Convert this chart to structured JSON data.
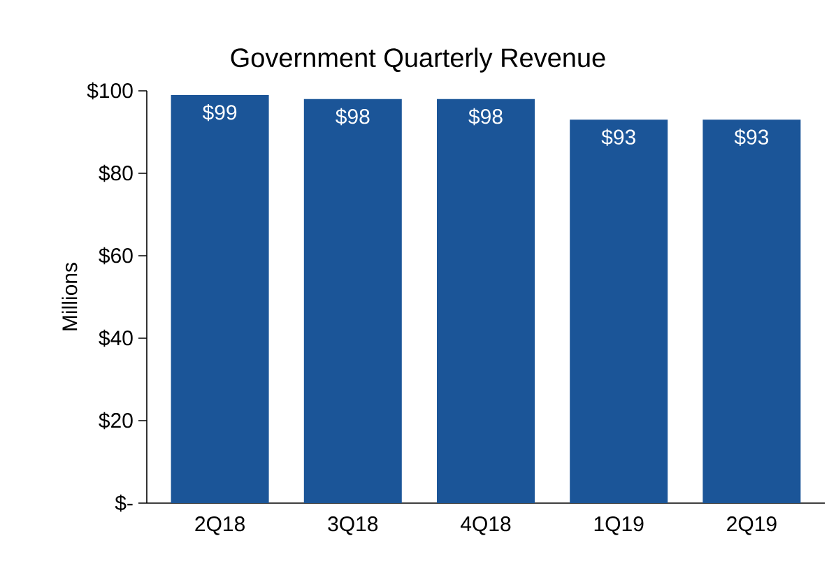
{
  "chart_data": {
    "type": "bar",
    "title": "Government Quarterly Revenue",
    "ylabel": "Millions",
    "categories": [
      "2Q18",
      "3Q18",
      "4Q18",
      "1Q19",
      "2Q19"
    ],
    "values": [
      99,
      98,
      98,
      93,
      93
    ],
    "value_labels": [
      "$99",
      "$98",
      "$98",
      "$93",
      "$93"
    ],
    "color": "#1b5598",
    "ylim": [
      0,
      100
    ],
    "yticks": [
      {
        "value": 0,
        "label": "$-"
      },
      {
        "value": 20,
        "label": "$20"
      },
      {
        "value": 40,
        "label": "$40"
      },
      {
        "value": 60,
        "label": "$60"
      },
      {
        "value": 80,
        "label": "$80"
      },
      {
        "value": 100,
        "label": "$100"
      }
    ],
    "grid": false
  }
}
